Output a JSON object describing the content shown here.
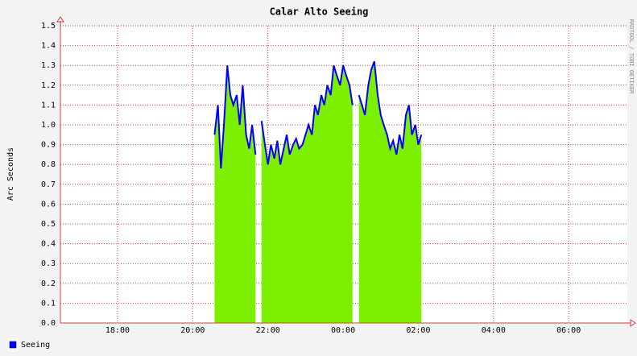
{
  "chart_data": {
    "type": "area",
    "title": "Calar Alto Seeing",
    "ylabel": "Arc Seconds",
    "watermark": "RRDTOOL / TOBI OETIKER",
    "x": [
      20.58,
      20.67,
      20.75,
      20.83,
      20.92,
      21.0,
      21.08,
      21.17,
      21.25,
      21.33,
      21.42,
      21.5,
      21.58,
      21.67,
      21.75,
      21.83,
      21.92,
      22.0,
      22.08,
      22.17,
      22.25,
      22.33,
      22.42,
      22.5,
      22.58,
      22.67,
      22.75,
      22.83,
      22.92,
      23.0,
      23.08,
      23.17,
      23.25,
      23.33,
      23.42,
      23.5,
      23.58,
      23.67,
      23.75,
      23.83,
      23.92,
      24.0,
      24.08,
      24.17,
      24.25,
      24.33,
      24.42,
      24.5,
      24.58,
      24.67,
      24.75,
      24.83,
      24.92,
      25.0,
      25.08,
      25.17,
      25.25,
      25.33,
      25.42,
      25.5,
      25.58,
      25.67,
      25.75,
      25.83,
      25.92,
      26.0,
      26.08
    ],
    "series": [
      {
        "name": "Seeing",
        "color": "#0000ff",
        "area_color": "#7cf000",
        "values": [
          0.95,
          1.1,
          0.78,
          1.0,
          1.3,
          1.15,
          1.1,
          1.15,
          1.0,
          1.2,
          0.95,
          0.88,
          1.0,
          0.85,
          null,
          1.02,
          0.9,
          0.8,
          0.9,
          0.83,
          0.92,
          0.8,
          0.88,
          0.95,
          0.85,
          0.9,
          0.93,
          0.88,
          0.9,
          0.95,
          1.0,
          0.95,
          1.1,
          1.05,
          1.15,
          1.1,
          1.2,
          1.15,
          1.3,
          1.25,
          1.2,
          1.3,
          1.25,
          1.2,
          1.1,
          null,
          1.15,
          1.1,
          1.05,
          1.2,
          1.28,
          1.32,
          1.15,
          1.05,
          1.0,
          0.95,
          0.88,
          0.92,
          0.85,
          0.95,
          0.88,
          1.05,
          1.1,
          0.95,
          1.0,
          0.9,
          0.95
        ]
      }
    ],
    "xlim": [
      16.48,
      31.56
    ],
    "xticks": [
      {
        "value": 18,
        "label": "18:00"
      },
      {
        "value": 20,
        "label": "20:00"
      },
      {
        "value": 22,
        "label": "22:00"
      },
      {
        "value": 24,
        "label": "00:00"
      },
      {
        "value": 26,
        "label": "02:00"
      },
      {
        "value": 28,
        "label": "04:00"
      },
      {
        "value": 30,
        "label": "06:00"
      }
    ],
    "ylim": [
      0,
      1.5
    ],
    "yticks": [
      {
        "value": 0,
        "label": "0.0"
      },
      0.1,
      0.2,
      0.3,
      0.4,
      0.5,
      0.6,
      0.7,
      0.8,
      0.9,
      {
        "value": 1,
        "label": "1.0"
      },
      1.1,
      1.2,
      1.3,
      1.4,
      1.5
    ],
    "grid": true,
    "grid_color": "#d04040"
  }
}
